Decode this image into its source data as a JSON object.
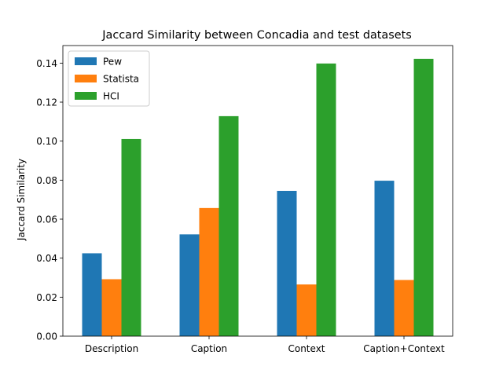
{
  "chart_data": {
    "type": "bar",
    "title": "Jaccard Similarity between Concadia and test datasets",
    "xlabel": "",
    "ylabel": "Jaccard Similarity",
    "categories": [
      "Description",
      "Caption",
      "Context",
      "Caption+Context"
    ],
    "series": [
      {
        "name": "Pew",
        "color": "#1f77b4",
        "values": [
          0.0425,
          0.0522,
          0.0745,
          0.0797
        ]
      },
      {
        "name": "Statista",
        "color": "#ff7f0e",
        "values": [
          0.0292,
          0.0657,
          0.0265,
          0.0288
        ]
      },
      {
        "name": "HCI",
        "color": "#2ca02c",
        "values": [
          0.1011,
          0.1128,
          0.1398,
          0.1422
        ]
      }
    ],
    "ylim": [
      0,
      0.149
    ],
    "yticks": [
      "0.00",
      "0.02",
      "0.04",
      "0.06",
      "0.08",
      "0.10",
      "0.12",
      "0.14"
    ],
    "legend_position": "top-left",
    "grid": false
  }
}
